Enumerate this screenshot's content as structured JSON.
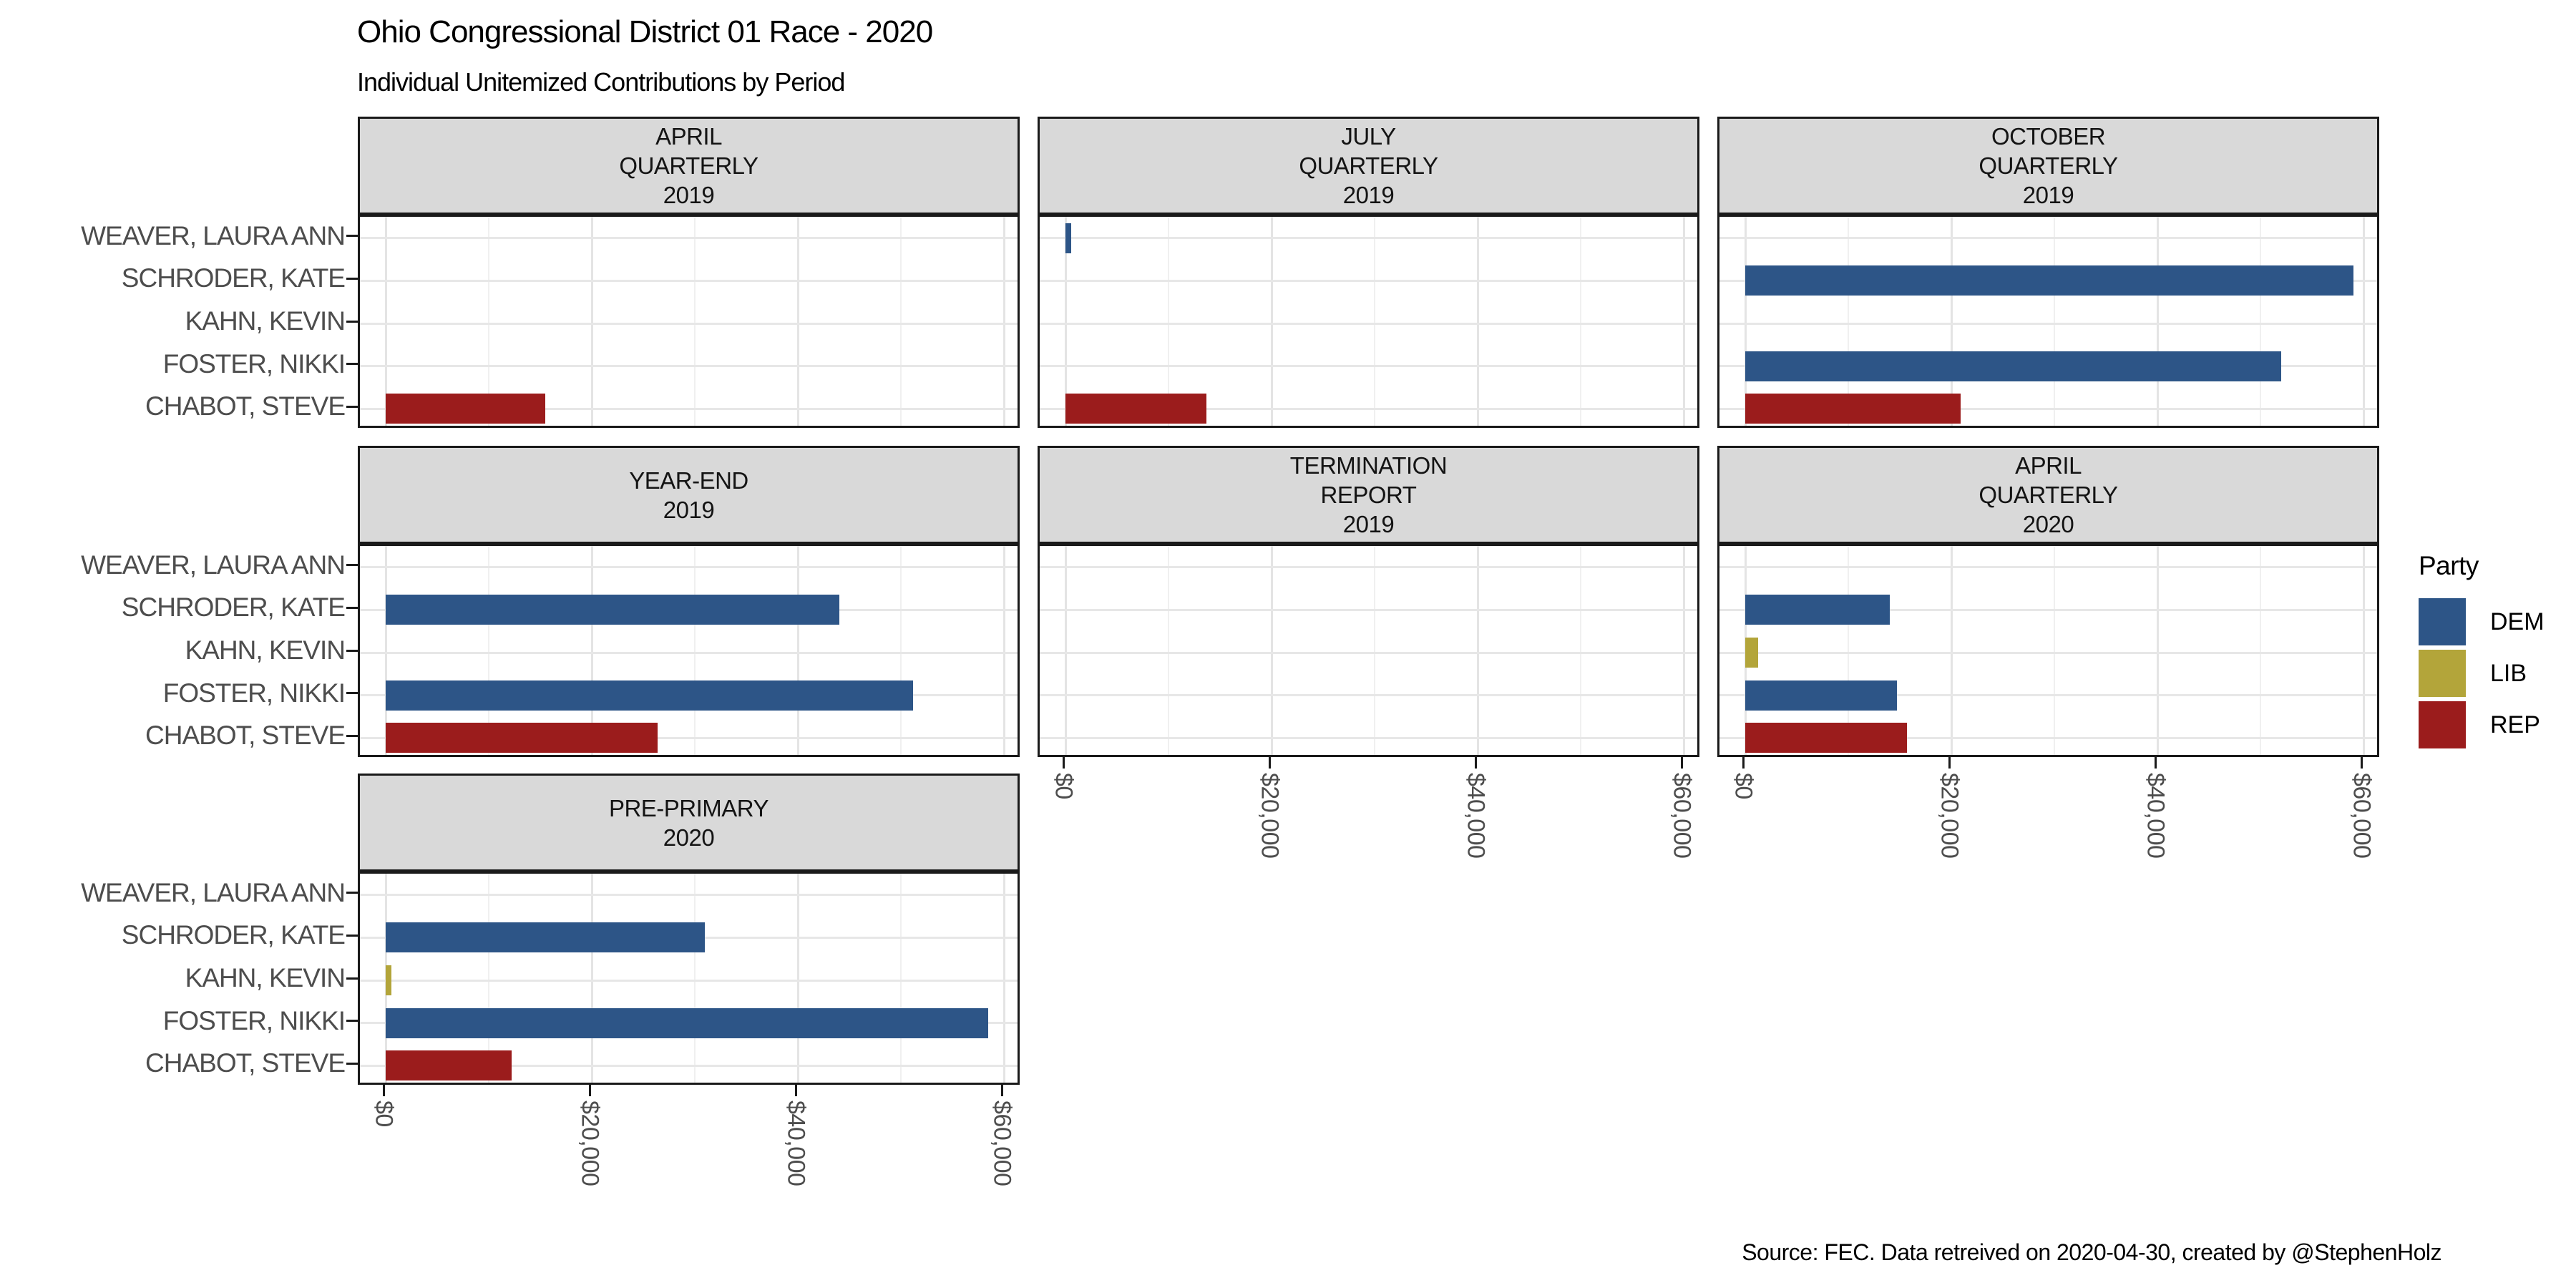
{
  "header": {
    "title": "Ohio Congressional District 01 Race - 2020",
    "subtitle": "Individual Unitemized Contributions by Period"
  },
  "caption": "Source: FEC. Data retreived on 2020-04-30, created by @StephenHolz",
  "legend": {
    "title": "Party",
    "entries": [
      {
        "label": "DEM",
        "color": "#2d5587"
      },
      {
        "label": "LIB",
        "color": "#b3a53a"
      },
      {
        "label": "REP",
        "color": "#9b1c1c"
      }
    ]
  },
  "chart_data": {
    "type": "bar",
    "orientation": "horizontal",
    "unit": "USD",
    "grid": "on",
    "legend_position": "right",
    "xlim": [
      0,
      62000
    ],
    "x_ticks": [
      {
        "value": 0,
        "label": "$0"
      },
      {
        "value": 20000,
        "label": "$20,000"
      },
      {
        "value": 40000,
        "label": "$40,000"
      },
      {
        "value": 60000,
        "label": "$60,000"
      }
    ],
    "x_minor_ticks": [
      10000,
      30000,
      50000
    ],
    "categories": [
      "WEAVER, LAURA ANN",
      "SCHRODER, KATE",
      "KAHN, KEVIN",
      "FOSTER, NIKKI",
      "CHABOT, STEVE"
    ],
    "category_party": {
      "WEAVER, LAURA ANN": "DEM",
      "SCHRODER, KATE": "DEM",
      "KAHN, KEVIN": "LIB",
      "FOSTER, NIKKI": "DEM",
      "CHABOT, STEVE": "REP"
    },
    "party_colors": {
      "DEM": "#2d5587",
      "LIB": "#b3a53a",
      "REP": "#9b1c1c"
    },
    "facets": [
      {
        "label_lines": [
          "APRIL",
          "QUARTERLY",
          "2019"
        ],
        "values": {
          "WEAVER, LAURA ANN": 0,
          "SCHRODER, KATE": 0,
          "KAHN, KEVIN": 0,
          "FOSTER, NIKKI": 0,
          "CHABOT, STEVE": 15500
        }
      },
      {
        "label_lines": [
          "JULY",
          "QUARTERLY",
          "2019"
        ],
        "values": {
          "WEAVER, LAURA ANN": 550,
          "SCHRODER, KATE": 0,
          "KAHN, KEVIN": 0,
          "FOSTER, NIKKI": 0,
          "CHABOT, STEVE": 13700
        }
      },
      {
        "label_lines": [
          "OCTOBER",
          "QUARTERLY",
          "2019"
        ],
        "values": {
          "WEAVER, LAURA ANN": 0,
          "SCHRODER, KATE": 59000,
          "KAHN, KEVIN": 0,
          "FOSTER, NIKKI": 52000,
          "CHABOT, STEVE": 20900
        }
      },
      {
        "label_lines": [
          "YEAR-END",
          "2019"
        ],
        "values": {
          "WEAVER, LAURA ANN": 0,
          "SCHRODER, KATE": 44000,
          "KAHN, KEVIN": 0,
          "FOSTER, NIKKI": 51200,
          "CHABOT, STEVE": 26400
        }
      },
      {
        "label_lines": [
          "TERMINATION",
          "REPORT",
          "2019"
        ],
        "values": {
          "WEAVER, LAURA ANN": 0,
          "SCHRODER, KATE": 0,
          "KAHN, KEVIN": 0,
          "FOSTER, NIKKI": 0,
          "CHABOT, STEVE": 0
        }
      },
      {
        "label_lines": [
          "APRIL",
          "QUARTERLY",
          "2020"
        ],
        "values": {
          "WEAVER, LAURA ANN": 0,
          "SCHRODER, KATE": 14000,
          "KAHN, KEVIN": 1250,
          "FOSTER, NIKKI": 14700,
          "CHABOT, STEVE": 15700
        }
      },
      {
        "label_lines": [
          "PRE-PRIMARY",
          "2020"
        ],
        "values": {
          "WEAVER, LAURA ANN": 0,
          "SCHRODER, KATE": 31000,
          "KAHN, KEVIN": 550,
          "FOSTER, NIKKI": 58500,
          "CHABOT, STEVE": 12200
        }
      }
    ]
  }
}
